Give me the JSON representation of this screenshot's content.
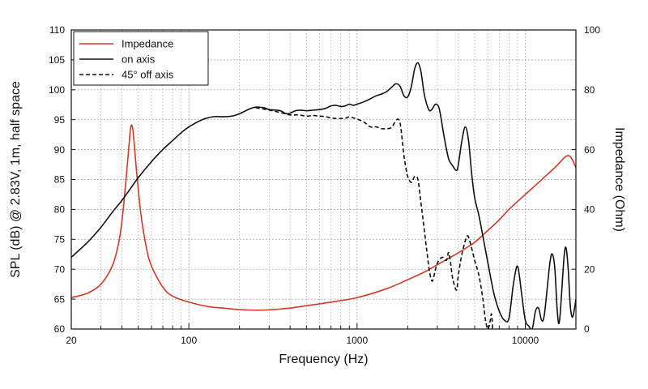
{
  "chart_data": {
    "type": "line",
    "xlabel": "Frequency (Hz)",
    "ylabel_left": "SPL (dB) @ 2.83V, 1m, half space",
    "ylabel_right": "Impedance (Ohm)",
    "x_scale": "log",
    "xlim": [
      20,
      20000
    ],
    "ylim_left": [
      60,
      110
    ],
    "ylim_right": [
      0,
      100
    ],
    "x_tick_labels": [
      {
        "value": 20,
        "label": "20"
      },
      {
        "value": 100,
        "label": "100"
      },
      {
        "value": 1000,
        "label": "1000"
      },
      {
        "value": 10000,
        "label": "10000"
      }
    ],
    "y_left_ticks": [
      60,
      65,
      70,
      75,
      80,
      85,
      90,
      95,
      100,
      105,
      110
    ],
    "y_right_ticks": [
      0,
      20,
      40,
      60,
      80,
      100
    ],
    "grid": true,
    "legend_position": "top-left",
    "series": [
      {
        "name": "Impedance",
        "axis": "right",
        "color": "#d03a2a",
        "dash": "solid",
        "points": [
          [
            20,
            10.5
          ],
          [
            25,
            12
          ],
          [
            30,
            15
          ],
          [
            35,
            21
          ],
          [
            38,
            28
          ],
          [
            40,
            36
          ],
          [
            42,
            48
          ],
          [
            44,
            61
          ],
          [
            45,
            67
          ],
          [
            46,
            68
          ],
          [
            47,
            64
          ],
          [
            49,
            52
          ],
          [
            52,
            38
          ],
          [
            56,
            27
          ],
          [
            60,
            21
          ],
          [
            70,
            14
          ],
          [
            80,
            11
          ],
          [
            100,
            9
          ],
          [
            130,
            7.5
          ],
          [
            160,
            7
          ],
          [
            200,
            6.5
          ],
          [
            250,
            6.3
          ],
          [
            300,
            6.4
          ],
          [
            400,
            7
          ],
          [
            500,
            7.8
          ],
          [
            700,
            9
          ],
          [
            1000,
            10.5
          ],
          [
            1500,
            13.5
          ],
          [
            2000,
            16.5
          ],
          [
            2500,
            19
          ],
          [
            3000,
            21.5
          ],
          [
            4000,
            25.5
          ],
          [
            5000,
            29
          ],
          [
            6000,
            33
          ],
          [
            7000,
            36.5
          ],
          [
            8000,
            40
          ],
          [
            10000,
            45
          ],
          [
            12000,
            49
          ],
          [
            15000,
            54
          ],
          [
            18000,
            58
          ],
          [
            20000,
            54
          ]
        ]
      },
      {
        "name": "on axis",
        "axis": "left",
        "color": "#111111",
        "dash": "solid",
        "points": [
          [
            20,
            72
          ],
          [
            25,
            74.5
          ],
          [
            30,
            77
          ],
          [
            35,
            79.5
          ],
          [
            40,
            81.5
          ],
          [
            45,
            83.5
          ],
          [
            50,
            85.3
          ],
          [
            60,
            88
          ],
          [
            70,
            90
          ],
          [
            80,
            91.5
          ],
          [
            90,
            92.8
          ],
          [
            100,
            93.8
          ],
          [
            120,
            95
          ],
          [
            140,
            95.5
          ],
          [
            160,
            95.5
          ],
          [
            180,
            95.6
          ],
          [
            200,
            96
          ],
          [
            230,
            96.8
          ],
          [
            250,
            97.1
          ],
          [
            280,
            97
          ],
          [
            300,
            96.7
          ],
          [
            330,
            96.6
          ],
          [
            350,
            96.5
          ],
          [
            380,
            96
          ],
          [
            400,
            96.1
          ],
          [
            430,
            96.5
          ],
          [
            460,
            96.6
          ],
          [
            500,
            96.5
          ],
          [
            550,
            96.6
          ],
          [
            600,
            96.7
          ],
          [
            650,
            96.9
          ],
          [
            700,
            97.3
          ],
          [
            750,
            97.4
          ],
          [
            800,
            97.2
          ],
          [
            850,
            97.3
          ],
          [
            900,
            97.6
          ],
          [
            950,
            97.4
          ],
          [
            1000,
            97.6
          ],
          [
            1100,
            98
          ],
          [
            1200,
            98.5
          ],
          [
            1300,
            99
          ],
          [
            1400,
            99.3
          ],
          [
            1500,
            99.7
          ],
          [
            1600,
            100.4
          ],
          [
            1700,
            101
          ],
          [
            1800,
            100.6
          ],
          [
            1900,
            99
          ],
          [
            2000,
            98.8
          ],
          [
            2100,
            100.5
          ],
          [
            2200,
            103.5
          ],
          [
            2300,
            104.5
          ],
          [
            2400,
            103
          ],
          [
            2500,
            99.5
          ],
          [
            2600,
            97.5
          ],
          [
            2700,
            96.5
          ],
          [
            2800,
            96.8
          ],
          [
            2900,
            97.5
          ],
          [
            3000,
            97.5
          ],
          [
            3100,
            96.5
          ],
          [
            3300,
            92
          ],
          [
            3500,
            88.5
          ],
          [
            3700,
            87.3
          ],
          [
            3900,
            86.5
          ],
          [
            4000,
            87.5
          ],
          [
            4200,
            91.5
          ],
          [
            4400,
            93.8
          ],
          [
            4600,
            91.5
          ],
          [
            4800,
            86
          ],
          [
            5000,
            82
          ],
          [
            5300,
            79
          ],
          [
            5600,
            75.5
          ],
          [
            6000,
            71
          ],
          [
            6500,
            66
          ],
          [
            7000,
            63
          ],
          [
            7500,
            61.5
          ],
          [
            8000,
            61.8
          ],
          [
            8500,
            67.5
          ],
          [
            9000,
            70.5
          ],
          [
            9500,
            66
          ],
          [
            10000,
            61.5
          ],
          [
            10500,
            60.5
          ],
          [
            11000,
            60
          ],
          [
            11500,
            63
          ],
          [
            12000,
            63.5
          ],
          [
            12500,
            61.5
          ],
          [
            13000,
            62.5
          ],
          [
            14000,
            71
          ],
          [
            14500,
            72.5
          ],
          [
            15000,
            70
          ],
          [
            15500,
            63
          ],
          [
            16000,
            61.5
          ],
          [
            17000,
            72
          ],
          [
            17500,
            73.5
          ],
          [
            18000,
            70
          ],
          [
            18500,
            64
          ],
          [
            19000,
            62
          ],
          [
            19500,
            63
          ],
          [
            20000,
            65
          ]
        ]
      },
      {
        "name": "45° off axis",
        "axis": "left",
        "color": "#111111",
        "dash": "dashed",
        "points": [
          [
            250,
            97
          ],
          [
            300,
            96.6
          ],
          [
            350,
            96.2
          ],
          [
            400,
            95.8
          ],
          [
            450,
            95.8
          ],
          [
            500,
            95.6
          ],
          [
            550,
            95.7
          ],
          [
            600,
            95.6
          ],
          [
            650,
            95.5
          ],
          [
            700,
            95.3
          ],
          [
            750,
            95.2
          ],
          [
            800,
            95.2
          ],
          [
            850,
            95.2
          ],
          [
            900,
            95.5
          ],
          [
            950,
            95.3
          ],
          [
            1000,
            95.1
          ],
          [
            1100,
            94.6
          ],
          [
            1200,
            93.8
          ],
          [
            1300,
            93.8
          ],
          [
            1400,
            93.5
          ],
          [
            1500,
            93.5
          ],
          [
            1600,
            93.7
          ],
          [
            1700,
            94.8
          ],
          [
            1750,
            95.1
          ],
          [
            1800,
            94.5
          ],
          [
            1850,
            92
          ],
          [
            1900,
            89
          ],
          [
            1950,
            87
          ],
          [
            2000,
            85.5
          ],
          [
            2100,
            84.5
          ],
          [
            2200,
            85.5
          ],
          [
            2300,
            85
          ],
          [
            2400,
            81
          ],
          [
            2500,
            77
          ],
          [
            2600,
            73
          ],
          [
            2700,
            69.5
          ],
          [
            2800,
            68
          ],
          [
            2900,
            69.5
          ],
          [
            3000,
            71
          ],
          [
            3200,
            72
          ],
          [
            3400,
            71.5
          ],
          [
            3500,
            72.8
          ],
          [
            3600,
            71
          ],
          [
            3700,
            68.5
          ],
          [
            3900,
            66.5
          ],
          [
            4000,
            69
          ],
          [
            4200,
            72.5
          ],
          [
            4500,
            75.5
          ],
          [
            4700,
            74.5
          ],
          [
            5000,
            71.5
          ],
          [
            5300,
            69
          ],
          [
            5600,
            65
          ],
          [
            5800,
            61.5
          ],
          [
            6000,
            60
          ],
          [
            6200,
            61.5
          ],
          [
            6300,
            62.5
          ],
          [
            6400,
            60
          ]
        ]
      }
    ]
  }
}
